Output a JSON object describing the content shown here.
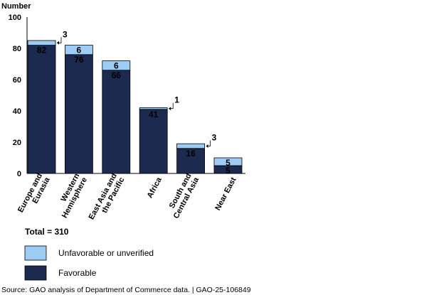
{
  "chart_data": {
    "type": "stacked_bar",
    "y_axis_label": "Number",
    "categories": [
      "Europe and\nEurasia",
      "Western\nHemisphere",
      "East Asia and\nthe Pacific",
      "Africa",
      "South and\nCentral Asia",
      "Near East"
    ],
    "series": [
      {
        "name": "Favorable",
        "color": "#1b2a4e",
        "values": [
          82,
          76,
          66,
          41,
          16,
          5
        ]
      },
      {
        "name": "Unfavorable or unverified",
        "color": "#9dcdf5",
        "values": [
          3,
          6,
          6,
          1,
          3,
          5
        ]
      }
    ],
    "ylim": [
      0,
      100
    ],
    "yticks": [
      0,
      20,
      40,
      60,
      80,
      100
    ],
    "total_note": "Total = 310",
    "source": "Source: GAO analysis of Department of Commerce data.  |  GAO-25-106849"
  }
}
